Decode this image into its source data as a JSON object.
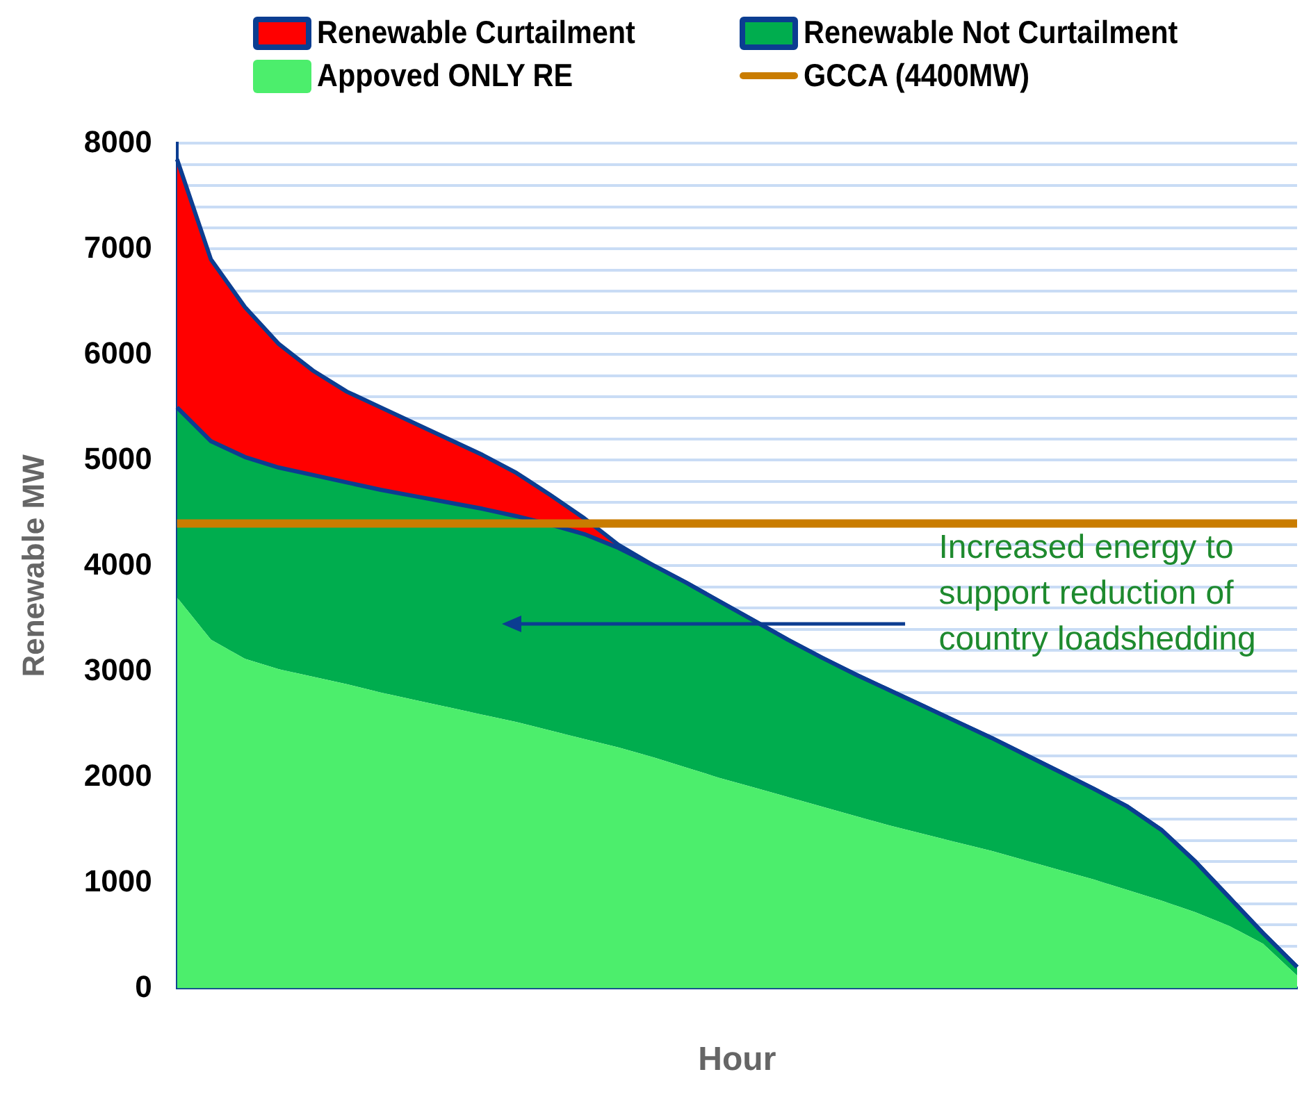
{
  "chart_data": {
    "type": "area",
    "stacked": true,
    "xlabel": "Hour",
    "ylabel": "Renewable MW",
    "grid": "y",
    "legend": "top",
    "tick_labels": "y",
    "categories": [
      null,
      null,
      null,
      null,
      null,
      null,
      null,
      null,
      null,
      null,
      null,
      null,
      null,
      null,
      null,
      null,
      null,
      null,
      null,
      null,
      null,
      null,
      null,
      null,
      null,
      null,
      null,
      null,
      null,
      null,
      null,
      null,
      null,
      null
    ],
    "series": [
      {
        "name": "Appoved ONLY RE",
        "color": "#4cee6c",
        "values": [
          3700,
          3300,
          3120,
          3020,
          2950,
          2880,
          2800,
          2730,
          2660,
          2590,
          2520,
          2440,
          2360,
          2280,
          2190,
          2090,
          1990,
          1900,
          1810,
          1720,
          1630,
          1540,
          1460,
          1380,
          1300,
          1210,
          1120,
          1030,
          930,
          830,
          720,
          590,
          420,
          120
        ]
      },
      {
        "name": "Renewable Not Curtailment",
        "color": "#00ad4e",
        "values": [
          1800,
          1880,
          1910,
          1910,
          1910,
          1910,
          1920,
          1930,
          1940,
          1950,
          1950,
          1950,
          1940,
          1890,
          1820,
          1750,
          1670,
          1580,
          1490,
          1410,
          1340,
          1280,
          1210,
          1140,
          1070,
          1000,
          930,
          860,
          790,
          670,
          480,
          270,
          100,
          80
        ]
      },
      {
        "name": "Renewable Curtailment",
        "color": "#ff0000",
        "values": [
          2350,
          1720,
          1420,
          1170,
          990,
          860,
          780,
          690,
          600,
          510,
          410,
          280,
          150,
          30,
          0,
          0,
          0,
          0,
          0,
          0,
          0,
          0,
          0,
          0,
          0,
          0,
          0,
          0,
          0,
          0,
          0,
          0,
          0,
          0
        ]
      }
    ],
    "ylim": [
      0,
      8000
    ],
    "yticks": [
      0,
      {
        "value": 200,
        "label": null
      },
      {
        "value": 400,
        "label": null
      },
      {
        "value": 600,
        "label": null
      },
      {
        "value": 800,
        "label": null
      },
      1000,
      {
        "value": 1200,
        "label": null
      },
      {
        "value": 1400,
        "label": null
      },
      {
        "value": 1600,
        "label": null
      },
      {
        "value": 1800,
        "label": null
      },
      2000,
      {
        "value": 2200,
        "label": null
      },
      {
        "value": 2400,
        "label": null
      },
      {
        "value": 2600,
        "label": null
      },
      {
        "value": 2800,
        "label": null
      },
      3000,
      {
        "value": 3200,
        "label": null
      },
      {
        "value": 3400,
        "label": null
      },
      {
        "value": 3600,
        "label": null
      },
      {
        "value": 3800,
        "label": null
      },
      4000,
      {
        "value": 4200,
        "label": null
      },
      {
        "value": 4400,
        "label": null
      },
      {
        "value": 4600,
        "label": null
      },
      {
        "value": 4800,
        "label": null
      },
      5000,
      {
        "value": 5200,
        "label": null
      },
      {
        "value": 5400,
        "label": null
      },
      {
        "value": 5600,
        "label": null
      },
      {
        "value": 5800,
        "label": null
      },
      6000,
      {
        "value": 6200,
        "label": null
      },
      {
        "value": 6400,
        "label": null
      },
      {
        "value": 6600,
        "label": null
      },
      {
        "value": 6800,
        "label": null
      },
      7000,
      {
        "value": 7200,
        "label": null
      },
      {
        "value": 7400,
        "label": null
      },
      {
        "value": 7600,
        "label": null
      },
      {
        "value": 7800,
        "label": null
      },
      8000
    ],
    "ref_lines": [
      {
        "axis": "y",
        "value": 4400,
        "label": "GCCA (4400MW)",
        "color": "#c97c00"
      }
    ],
    "annotations": [
      "Increased energy to support reduction of country loadshedding"
    ]
  }
}
